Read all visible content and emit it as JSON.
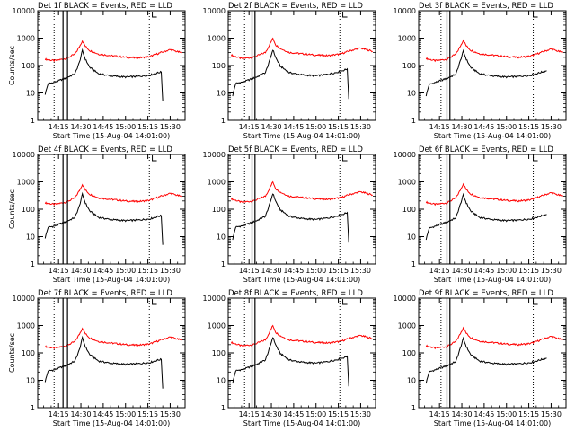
{
  "figure": {
    "background": "#ffffff",
    "axis_color": "#000000"
  },
  "chart_data": [
    {
      "type": "line",
      "detector": "1f",
      "title": "Det 1f BLACK = Events, RED = LLD",
      "xlabel": "Start Time (15-Aug-04 14:01:00)",
      "ylabel": "Counts/sec",
      "y_scale": "log",
      "ylim": [
        1,
        10000
      ],
      "xticks": [
        "14:15",
        "14:30",
        "14:45",
        "15:00",
        "15:15",
        "15:30"
      ],
      "xlim": [
        "14:01",
        "15:40"
      ],
      "yticks": [
        "1",
        "10",
        "100",
        "1000",
        "10000"
      ],
      "solid_vlines": [
        "14:18",
        "14:21"
      ],
      "dotted_vlines": [
        "14:12",
        "15:16"
      ],
      "series": [
        {
          "color": "#ff0000",
          "x": [
            "14:06",
            "14:12",
            "14:20",
            "14:26",
            "14:29",
            "14:31",
            "14:33",
            "14:36",
            "14:42",
            "14:50",
            "15:00",
            "15:08",
            "15:16",
            "15:24",
            "15:30",
            "15:34",
            "15:38"
          ],
          "values": [
            170,
            150,
            180,
            260,
            480,
            800,
            500,
            350,
            260,
            230,
            200,
            190,
            210,
            300,
            380,
            330,
            290
          ]
        },
        {
          "color": "#000000",
          "x": [
            "14:06",
            "14:08",
            "14:12",
            "14:20",
            "14:26",
            "14:29",
            "14:31",
            "14:33",
            "14:36",
            "14:42",
            "14:50",
            "15:00",
            "15:08",
            "15:16",
            "15:22",
            "15:24",
            "15:25"
          ],
          "values": [
            9,
            22,
            24,
            35,
            50,
            130,
            350,
            170,
            85,
            50,
            42,
            38,
            40,
            44,
            55,
            58,
            5
          ]
        }
      ]
    },
    {
      "type": "line",
      "detector": "2f",
      "title": "Det 2f BLACK = Events, RED = LLD",
      "xlabel": "Start Time (15-Aug-04 14:01:00)",
      "ylabel": "",
      "y_scale": "log",
      "ylim": [
        1,
        10000
      ],
      "xticks": [
        "14:15",
        "14:30",
        "14:45",
        "15:00",
        "15:15",
        "15:30"
      ],
      "xlim": [
        "14:01",
        "15:40"
      ],
      "yticks": [
        "1",
        "10",
        "100",
        "1000",
        "10000"
      ],
      "solid_vlines": [
        "14:17",
        "14:19"
      ],
      "dotted_vlines": [
        "14:12",
        "15:16"
      ],
      "series": [
        {
          "color": "#ff0000",
          "x": [
            "14:03",
            "14:10",
            "14:18",
            "14:26",
            "14:29",
            "14:31",
            "14:33",
            "14:36",
            "14:42",
            "14:50",
            "15:00",
            "15:08",
            "15:16",
            "15:24",
            "15:30",
            "15:34",
            "15:38"
          ],
          "values": [
            240,
            180,
            200,
            300,
            600,
            1000,
            560,
            420,
            300,
            270,
            240,
            230,
            260,
            360,
            430,
            380,
            330
          ]
        },
        {
          "color": "#000000",
          "x": [
            "14:04",
            "14:06",
            "14:12",
            "14:20",
            "14:26",
            "14:29",
            "14:31",
            "14:33",
            "14:36",
            "14:42",
            "14:50",
            "15:00",
            "15:08",
            "15:16",
            "15:21",
            "15:22"
          ],
          "values": [
            8,
            22,
            26,
            38,
            55,
            160,
            380,
            190,
            95,
            55,
            46,
            42,
            48,
            60,
            75,
            6
          ]
        }
      ]
    },
    {
      "type": "line",
      "detector": "3f",
      "title": "Det 3f BLACK = Events, RED = LLD",
      "xlabel": "Start Time (15-Aug-04 14:01:00)",
      "ylabel": "",
      "y_scale": "log",
      "ylim": [
        1,
        10000
      ],
      "xticks": [
        "14:15",
        "14:30",
        "14:45",
        "15:00",
        "15:15",
        "15:30"
      ],
      "xlim": [
        "14:01",
        "15:40"
      ],
      "yticks": [
        "1",
        "10",
        "100",
        "1000",
        "10000"
      ],
      "solid_vlines": [
        "14:20",
        "14:22"
      ],
      "dotted_vlines": [
        "14:16",
        "15:18"
      ],
      "series": [
        {
          "color": "#ff0000",
          "x": [
            "14:06",
            "14:12",
            "14:20",
            "14:26",
            "14:29",
            "14:31",
            "14:33",
            "14:36",
            "14:42",
            "14:50",
            "15:00",
            "15:08",
            "15:16",
            "15:24",
            "15:30",
            "15:34",
            "15:38"
          ],
          "values": [
            180,
            150,
            170,
            260,
            500,
            850,
            520,
            360,
            270,
            240,
            210,
            200,
            220,
            310,
            400,
            340,
            300
          ]
        },
        {
          "color": "#000000",
          "x": [
            "14:06",
            "14:08",
            "14:12",
            "14:20",
            "14:26",
            "14:29",
            "14:31",
            "14:33",
            "14:36",
            "14:42",
            "14:50",
            "15:00",
            "15:08",
            "15:16",
            "15:24",
            "15:27"
          ],
          "values": [
            8,
            20,
            24,
            34,
            48,
            150,
            330,
            170,
            85,
            50,
            42,
            38,
            40,
            44,
            58,
            65
          ]
        }
      ]
    },
    {
      "type": "line",
      "detector": "4f",
      "title": "Det 4f BLACK = Events, RED = LLD",
      "xlabel": "Start Time (15-Aug-04 14:01:00)",
      "ylabel": "Counts/sec",
      "y_scale": "log",
      "ylim": [
        1,
        10000
      ],
      "xticks": [
        "14:15",
        "14:30",
        "14:45",
        "15:00",
        "15:15",
        "15:30"
      ],
      "xlim": [
        "14:01",
        "15:40"
      ],
      "yticks": [
        "1",
        "10",
        "100",
        "1000",
        "10000"
      ],
      "solid_vlines": [
        "14:18",
        "14:21"
      ],
      "dotted_vlines": [
        "14:12",
        "15:16"
      ],
      "series": [
        {
          "color": "#ff0000",
          "x": [
            "14:06",
            "14:12",
            "14:20",
            "14:26",
            "14:29",
            "14:31",
            "14:33",
            "14:36",
            "14:42",
            "14:50",
            "15:00",
            "15:08",
            "15:16",
            "15:24",
            "15:30",
            "15:34",
            "15:38"
          ],
          "values": [
            170,
            150,
            180,
            260,
            480,
            800,
            500,
            350,
            260,
            230,
            200,
            190,
            210,
            300,
            380,
            330,
            290
          ]
        },
        {
          "color": "#000000",
          "x": [
            "14:06",
            "14:08",
            "14:12",
            "14:20",
            "14:26",
            "14:29",
            "14:31",
            "14:33",
            "14:36",
            "14:42",
            "14:50",
            "15:00",
            "15:08",
            "15:16",
            "15:22",
            "15:24",
            "15:25"
          ],
          "values": [
            9,
            22,
            24,
            35,
            50,
            130,
            350,
            170,
            85,
            50,
            42,
            38,
            40,
            44,
            55,
            58,
            5
          ]
        }
      ]
    },
    {
      "type": "line",
      "detector": "5f",
      "title": "Det 5f BLACK = Events, RED = LLD",
      "xlabel": "Start Time (15-Aug-04 14:01:00)",
      "ylabel": "",
      "y_scale": "log",
      "ylim": [
        1,
        10000
      ],
      "xticks": [
        "14:15",
        "14:30",
        "14:45",
        "15:00",
        "15:15",
        "15:30"
      ],
      "xlim": [
        "14:01",
        "15:40"
      ],
      "yticks": [
        "1",
        "10",
        "100",
        "1000",
        "10000"
      ],
      "solid_vlines": [
        "14:17",
        "14:19"
      ],
      "dotted_vlines": [
        "14:12",
        "15:16"
      ],
      "series": [
        {
          "color": "#ff0000",
          "x": [
            "14:03",
            "14:10",
            "14:18",
            "14:26",
            "14:29",
            "14:31",
            "14:33",
            "14:36",
            "14:42",
            "14:50",
            "15:00",
            "15:08",
            "15:16",
            "15:24",
            "15:30",
            "15:34",
            "15:38"
          ],
          "values": [
            240,
            180,
            200,
            300,
            600,
            1000,
            560,
            420,
            300,
            270,
            240,
            230,
            260,
            360,
            430,
            380,
            330
          ]
        },
        {
          "color": "#000000",
          "x": [
            "14:04",
            "14:06",
            "14:12",
            "14:20",
            "14:26",
            "14:29",
            "14:31",
            "14:33",
            "14:36",
            "14:42",
            "14:50",
            "15:00",
            "15:08",
            "15:16",
            "15:21",
            "15:22"
          ],
          "values": [
            8,
            22,
            26,
            38,
            55,
            160,
            380,
            190,
            95,
            55,
            46,
            42,
            48,
            60,
            75,
            6
          ]
        }
      ]
    },
    {
      "type": "line",
      "detector": "6f",
      "title": "Det 6f BLACK = Events, RED = LLD",
      "xlabel": "Start Time (15-Aug-04 14:01:00)",
      "ylabel": "",
      "y_scale": "log",
      "ylim": [
        1,
        10000
      ],
      "xticks": [
        "14:15",
        "14:30",
        "14:45",
        "15:00",
        "15:15",
        "15:30"
      ],
      "xlim": [
        "14:01",
        "15:40"
      ],
      "yticks": [
        "1",
        "10",
        "100",
        "1000",
        "10000"
      ],
      "solid_vlines": [
        "14:20",
        "14:22"
      ],
      "dotted_vlines": [
        "14:16",
        "15:18"
      ],
      "series": [
        {
          "color": "#ff0000",
          "x": [
            "14:06",
            "14:12",
            "14:20",
            "14:26",
            "14:29",
            "14:31",
            "14:33",
            "14:36",
            "14:42",
            "14:50",
            "15:00",
            "15:08",
            "15:16",
            "15:24",
            "15:30",
            "15:34",
            "15:38"
          ],
          "values": [
            180,
            150,
            170,
            260,
            500,
            850,
            520,
            360,
            270,
            240,
            210,
            200,
            220,
            310,
            400,
            340,
            300
          ]
        },
        {
          "color": "#000000",
          "x": [
            "14:06",
            "14:08",
            "14:12",
            "14:20",
            "14:26",
            "14:29",
            "14:31",
            "14:33",
            "14:36",
            "14:42",
            "14:50",
            "15:00",
            "15:08",
            "15:16",
            "15:24",
            "15:27"
          ],
          "values": [
            8,
            20,
            24,
            34,
            48,
            150,
            330,
            170,
            85,
            50,
            42,
            38,
            40,
            44,
            58,
            65
          ]
        }
      ]
    },
    {
      "type": "line",
      "detector": "7f",
      "title": "Det 7f BLACK = Events, RED = LLD",
      "xlabel": "Start Time (15-Aug-04 14:01:00)",
      "ylabel": "Counts/sec",
      "y_scale": "log",
      "ylim": [
        1,
        10000
      ],
      "xticks": [
        "14:15",
        "14:30",
        "14:45",
        "15:00",
        "15:15",
        "15:30"
      ],
      "xlim": [
        "14:01",
        "15:40"
      ],
      "yticks": [
        "1",
        "10",
        "100",
        "1000",
        "10000"
      ],
      "solid_vlines": [
        "14:18",
        "14:21"
      ],
      "dotted_vlines": [
        "14:12",
        "15:16"
      ],
      "series": [
        {
          "color": "#ff0000",
          "x": [
            "14:06",
            "14:12",
            "14:20",
            "14:26",
            "14:29",
            "14:31",
            "14:33",
            "14:36",
            "14:42",
            "14:50",
            "15:00",
            "15:08",
            "15:16",
            "15:24",
            "15:30",
            "15:34",
            "15:38"
          ],
          "values": [
            170,
            150,
            180,
            260,
            480,
            800,
            500,
            350,
            260,
            230,
            200,
            190,
            210,
            300,
            380,
            330,
            290
          ]
        },
        {
          "color": "#000000",
          "x": [
            "14:06",
            "14:08",
            "14:12",
            "14:20",
            "14:26",
            "14:29",
            "14:31",
            "14:33",
            "14:36",
            "14:42",
            "14:50",
            "15:00",
            "15:08",
            "15:16",
            "15:22",
            "15:24",
            "15:25"
          ],
          "values": [
            9,
            22,
            24,
            35,
            50,
            130,
            350,
            170,
            85,
            50,
            42,
            38,
            40,
            44,
            55,
            58,
            5
          ]
        }
      ]
    },
    {
      "type": "line",
      "detector": "8f",
      "title": "Det 8f BLACK = Events, RED = LLD",
      "xlabel": "Start Time (15-Aug-04 14:01:00)",
      "ylabel": "",
      "y_scale": "log",
      "ylim": [
        1,
        10000
      ],
      "xticks": [
        "14:15",
        "14:30",
        "14:45",
        "15:00",
        "15:15",
        "15:30"
      ],
      "xlim": [
        "14:01",
        "15:40"
      ],
      "yticks": [
        "1",
        "10",
        "100",
        "1000",
        "10000"
      ],
      "solid_vlines": [
        "14:17",
        "14:19"
      ],
      "dotted_vlines": [
        "14:12",
        "15:16"
      ],
      "series": [
        {
          "color": "#ff0000",
          "x": [
            "14:03",
            "14:10",
            "14:18",
            "14:26",
            "14:29",
            "14:31",
            "14:33",
            "14:36",
            "14:42",
            "14:50",
            "15:00",
            "15:08",
            "15:16",
            "15:24",
            "15:30",
            "15:34",
            "15:38"
          ],
          "values": [
            240,
            180,
            200,
            300,
            600,
            1000,
            560,
            420,
            300,
            270,
            240,
            230,
            260,
            360,
            430,
            380,
            330
          ]
        },
        {
          "color": "#000000",
          "x": [
            "14:04",
            "14:06",
            "14:12",
            "14:20",
            "14:26",
            "14:29",
            "14:31",
            "14:33",
            "14:36",
            "14:42",
            "14:50",
            "15:00",
            "15:08",
            "15:16",
            "15:21",
            "15:22"
          ],
          "values": [
            8,
            22,
            26,
            38,
            55,
            160,
            380,
            190,
            95,
            55,
            46,
            42,
            48,
            60,
            75,
            6
          ]
        }
      ]
    },
    {
      "type": "line",
      "detector": "9f",
      "title": "Det 9f BLACK = Events, RED = LLD",
      "xlabel": "Start Time (15-Aug-04 14:01:00)",
      "ylabel": "",
      "y_scale": "log",
      "ylim": [
        1,
        10000
      ],
      "xticks": [
        "14:15",
        "14:30",
        "14:45",
        "15:00",
        "15:15",
        "15:30"
      ],
      "xlim": [
        "14:01",
        "15:40"
      ],
      "yticks": [
        "1",
        "10",
        "100",
        "1000",
        "10000"
      ],
      "solid_vlines": [
        "14:20",
        "14:22"
      ],
      "dotted_vlines": [
        "14:16",
        "15:18"
      ],
      "series": [
        {
          "color": "#ff0000",
          "x": [
            "14:06",
            "14:12",
            "14:20",
            "14:26",
            "14:29",
            "14:31",
            "14:33",
            "14:36",
            "14:42",
            "14:50",
            "15:00",
            "15:08",
            "15:16",
            "15:24",
            "15:30",
            "15:34",
            "15:38"
          ],
          "values": [
            180,
            150,
            170,
            260,
            500,
            850,
            520,
            360,
            270,
            240,
            210,
            200,
            220,
            310,
            400,
            340,
            300
          ]
        },
        {
          "color": "#000000",
          "x": [
            "14:06",
            "14:08",
            "14:12",
            "14:20",
            "14:26",
            "14:29",
            "14:31",
            "14:33",
            "14:36",
            "14:42",
            "14:50",
            "15:00",
            "15:08",
            "15:16",
            "15:24",
            "15:27"
          ],
          "values": [
            8,
            20,
            24,
            34,
            48,
            150,
            330,
            170,
            85,
            50,
            42,
            38,
            40,
            44,
            58,
            65
          ]
        }
      ]
    }
  ]
}
